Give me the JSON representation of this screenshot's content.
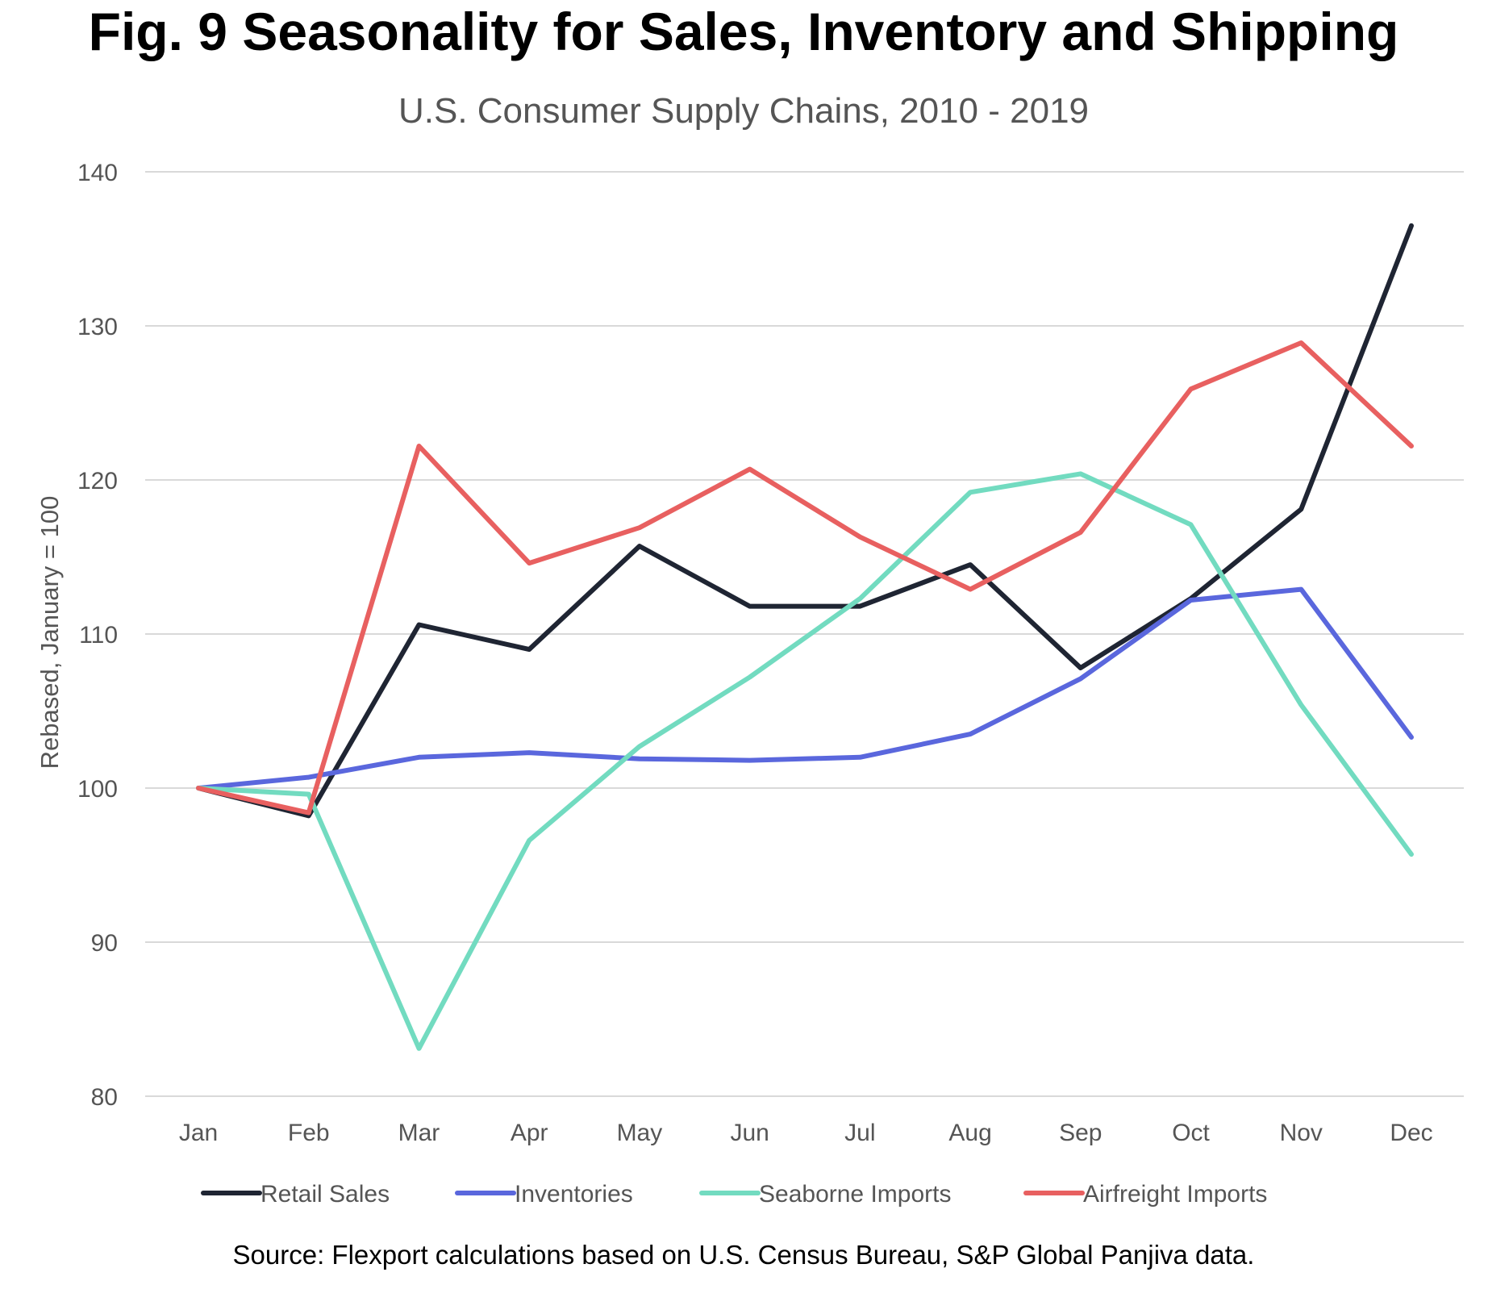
{
  "colors": {
    "retail": "#1f2533",
    "inventories": "#5a67dd",
    "seaborne": "#72dbc0",
    "airfreight": "#e86060",
    "grid": "#d9d9d9",
    "axis_text": "#555555"
  },
  "chart_data": {
    "type": "line",
    "title": "Fig. 9 Seasonality for Sales, Inventory and Shipping",
    "subtitle": "U.S. Consumer Supply Chains, 2010 - 2019",
    "xlabel": "",
    "ylabel": "Rebased, January = 100",
    "ylim": [
      80,
      140
    ],
    "yticks": [
      "80",
      "90",
      "100",
      "110",
      "120",
      "130",
      "140"
    ],
    "grid": true,
    "legend_position": "bottom",
    "categories": [
      "Jan",
      "Feb",
      "Mar",
      "Apr",
      "May",
      "Jun",
      "Jul",
      "Aug",
      "Sep",
      "Oct",
      "Nov",
      "Dec"
    ],
    "series": [
      {
        "name": "Retail Sales",
        "color_key": "retail",
        "values": [
          100,
          98.2,
          110.6,
          109.0,
          115.7,
          111.8,
          111.8,
          114.5,
          107.8,
          112.3,
          118.1,
          136.5
        ]
      },
      {
        "name": "Inventories",
        "color_key": "inventories",
        "values": [
          100,
          100.7,
          102.0,
          102.3,
          101.9,
          101.8,
          102.0,
          103.5,
          107.1,
          112.2,
          112.9,
          103.3
        ]
      },
      {
        "name": "Seaborne Imports",
        "color_key": "seaborne",
        "values": [
          100,
          99.6,
          83.1,
          96.6,
          102.7,
          107.2,
          112.3,
          119.2,
          120.4,
          117.1,
          105.4,
          95.7
        ]
      },
      {
        "name": "Airfreight Imports",
        "color_key": "airfreight",
        "values": [
          100,
          98.4,
          122.2,
          114.6,
          116.9,
          120.7,
          116.3,
          112.9,
          116.6,
          125.9,
          128.9,
          122.2
        ]
      }
    ],
    "source": "Source: Flexport calculations based on U.S. Census Bureau, S&P Global Panjiva data."
  }
}
